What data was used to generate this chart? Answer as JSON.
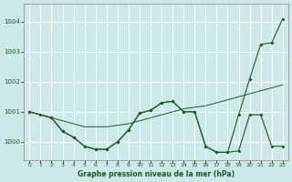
{
  "title": "Graphe pression niveau de la mer (hPa)",
  "bg_color": "#cce8e8",
  "plot_bg_color": "#cce8e8",
  "grid_color": "#ffffff",
  "line_color": "#1a5c1a",
  "xlim": [
    -0.5,
    23.5
  ],
  "ylim": [
    999.4,
    1004.6
  ],
  "yticks": [
    1000,
    1001,
    1002,
    1003,
    1004
  ],
  "xticks": [
    0,
    1,
    2,
    3,
    4,
    5,
    6,
    7,
    8,
    9,
    10,
    11,
    12,
    13,
    14,
    15,
    16,
    17,
    18,
    19,
    20,
    21,
    22,
    23
  ],
  "series1_x": [
    0,
    1,
    2,
    3,
    4,
    5,
    6,
    7,
    8,
    9,
    10,
    11,
    12,
    13,
    14,
    15,
    16,
    17,
    18,
    19,
    20,
    21,
    22,
    23
  ],
  "series1_y": [
    1001.0,
    1000.9,
    1000.8,
    1000.7,
    1000.6,
    1000.5,
    1000.5,
    1000.5,
    1000.55,
    1000.6,
    1000.7,
    1000.8,
    1000.9,
    1001.0,
    1001.1,
    1001.15,
    1001.2,
    1001.3,
    1001.4,
    1001.5,
    1001.6,
    1001.7,
    1001.8,
    1001.9
  ],
  "series2_x": [
    0,
    2,
    3,
    4,
    5,
    6,
    7,
    8,
    9,
    10,
    11,
    12,
    13,
    14,
    15,
    16,
    17,
    18,
    19,
    20,
    21,
    22,
    23
  ],
  "series2_y": [
    1001.0,
    1000.8,
    1000.35,
    1000.15,
    999.85,
    999.75,
    999.75,
    1000.0,
    1000.4,
    1000.95,
    1001.05,
    1001.3,
    1001.35,
    1001.0,
    1001.0,
    999.85,
    999.65,
    999.65,
    999.7,
    1000.9,
    1000.9,
    999.85,
    999.85
  ],
  "series3_x": [
    0,
    1,
    2,
    3,
    4,
    5,
    6,
    7,
    8,
    9,
    10,
    11,
    12,
    13,
    14,
    15,
    16,
    17,
    18,
    19,
    20,
    21,
    22,
    23
  ],
  "series3_y": [
    1001.0,
    1000.9,
    1000.8,
    1000.35,
    1000.15,
    999.85,
    999.75,
    999.75,
    1000.0,
    1000.4,
    1000.95,
    1001.05,
    1001.3,
    1001.35,
    1001.0,
    1001.0,
    999.85,
    999.65,
    999.65,
    1000.9,
    1002.1,
    1003.25,
    1003.3,
    1004.1
  ]
}
